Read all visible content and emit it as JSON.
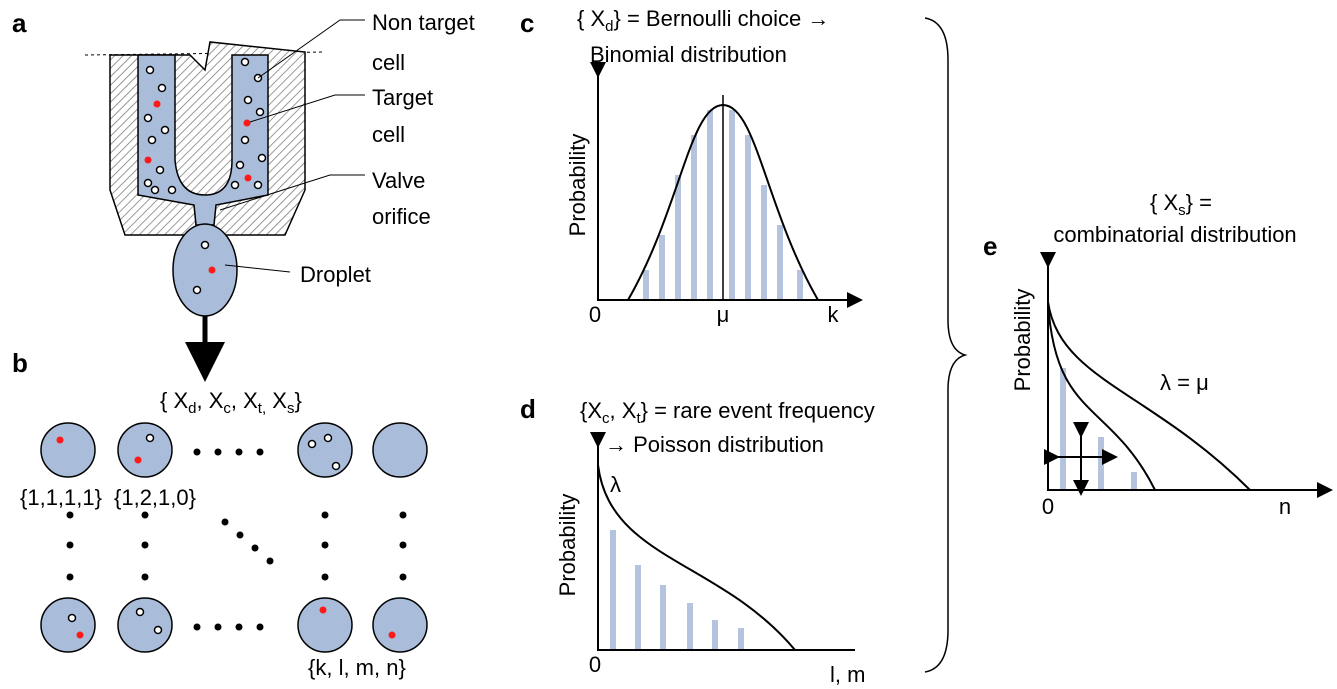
{
  "panels": {
    "a": {
      "label": "a",
      "callouts": [
        [
          "Non target",
          "cell"
        ],
        [
          "Target",
          "cell"
        ],
        [
          "Valve",
          "orifice"
        ],
        [
          "Droplet"
        ]
      ]
    },
    "b": {
      "label": "b",
      "set_label": [
        "{ X",
        "d",
        ", X",
        "c",
        ", X",
        "t,",
        " X",
        "s",
        "}"
      ],
      "tuples": [
        "{1,1,1,1}",
        "{1,2,1,0}",
        "{k, l, m, n}"
      ]
    },
    "c": {
      "label": "c",
      "title": [
        [
          "{ X",
          "d",
          "} = Bernoulli choice →"
        ],
        [
          "Binomial distribution"
        ]
      ],
      "y_axis": "Probability",
      "x_labels": [
        "0",
        "μ",
        "k"
      ]
    },
    "d": {
      "label": "d",
      "title": [
        [
          "{X",
          "c",
          ",  X",
          "t",
          "}  = rare event frequency"
        ],
        [
          "→ Poisson distribution"
        ]
      ],
      "y_axis": "Probability",
      "curve_label": "λ",
      "x_labels": [
        "0",
        "l, m"
      ]
    },
    "e": {
      "label": "e",
      "title": [
        [
          "{ X",
          "s",
          "} ="
        ],
        [
          "combinatorial distribution"
        ]
      ],
      "y_axis": "Probability",
      "curve_label": "λ = μ",
      "x_labels": [
        "0",
        "n"
      ]
    }
  }
}
